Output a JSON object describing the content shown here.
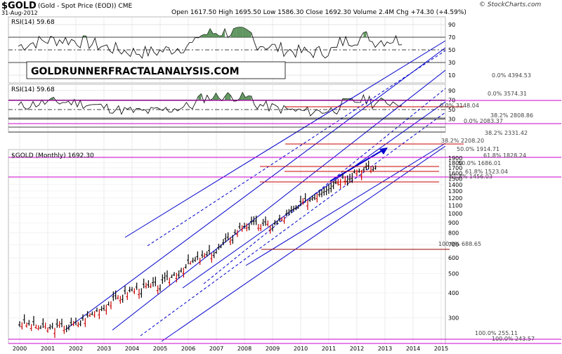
{
  "header": {
    "symbol": "$GOLD",
    "description": "(Gold - Spot Price (EOD)) CME",
    "date": "31-Aug-2012",
    "ohlc": "Open 1617.50  High 1695.50  Low 1586.30  Close 1692.30  Volume 2.4M  Chg +74.30 (+4.59%)",
    "brand": "© StockCharts.com"
  },
  "watermark": "GOLDRUNNERFRACTALANALYSIS.COM",
  "colors": {
    "price_up": "#000000",
    "price_down": "#cc0000",
    "channel": "#0000cc",
    "magenta": "#cc00cc",
    "dark_red": "#990000",
    "rsi_fill": "#3a7a3a"
  },
  "chart_data": [
    {
      "type": "line",
      "title": "RSI(14) 59.68",
      "ylim": [
        0,
        100
      ],
      "levels": [
        90,
        70,
        50,
        30,
        10
      ],
      "tick_labels": [
        "90",
        "70",
        "50",
        "30",
        "10"
      ],
      "note": "upper RSI panel"
    },
    {
      "type": "line",
      "title": "RSI(14) 59.68",
      "ylim": [
        0,
        100
      ],
      "levels": [
        90,
        70,
        50,
        30
      ],
      "tick_labels": [
        "90",
        "70",
        "50",
        "30"
      ]
    },
    {
      "type": "line",
      "title": "$GOLD (Monthly) 1692.30",
      "xlabel": "",
      "ylabel": "",
      "log_scale": true,
      "x_tick_labels": [
        "2000",
        "2001",
        "2002",
        "2003",
        "2004",
        "2005",
        "2006",
        "2007",
        "2008",
        "2009",
        "2010",
        "2011",
        "2012",
        "2013",
        "2014",
        "2015"
      ],
      "y_tick_labels": [
        "1900",
        "1800",
        "1700",
        "1600",
        "1500",
        "1400",
        "1300",
        "1200",
        "1100",
        "1000",
        "900",
        "800",
        "700",
        "600",
        "500",
        "400",
        "300"
      ],
      "ylim": [
        240,
        1950
      ],
      "x": [
        "2000",
        "2001",
        "2002",
        "2003",
        "2004",
        "2005",
        "2006",
        "2007",
        "2008",
        "2009",
        "2010",
        "2011",
        "2012",
        "2012-08"
      ],
      "values": [
        285,
        265,
        278,
        345,
        415,
        438,
        560,
        650,
        890,
        870,
        1100,
        1400,
        1650,
        1692.3
      ],
      "fib_labels": [
        {
          "text": "0.0% 4394.53",
          "value": 4394.53
        },
        {
          "text": "0.0% 3574.31",
          "value": 3574.31
        },
        {
          "text": "0.0% 3148.04",
          "value": 3148.04
        },
        {
          "text": "38.2% 2808.86",
          "value": 2808.86
        },
        {
          "text": "0.0% 2083.37",
          "value": 2083.37
        },
        {
          "text": "38.2% 2331.42",
          "value": 2331.42
        },
        {
          "text": "38.2% 2208.20",
          "value": 2208.2
        },
        {
          "text": "50.0% 1914.71",
          "value": 1914.71
        },
        {
          "text": "61.8% 1828.24",
          "value": 1828.24
        },
        {
          "text": "50.0% 1686.01",
          "value": 1686.01
        },
        {
          "text": "61.8% 1523.04",
          "value": 1523.04
        },
        {
          "text": "61.8% 1456.03",
          "value": 1456.03
        },
        {
          "text": "100.0% 688.65",
          "value": 688.65
        },
        {
          "text": "100.0% 255.11",
          "value": 255.11
        },
        {
          "text": "100.0% 243.57",
          "value": 243.57
        }
      ]
    }
  ]
}
